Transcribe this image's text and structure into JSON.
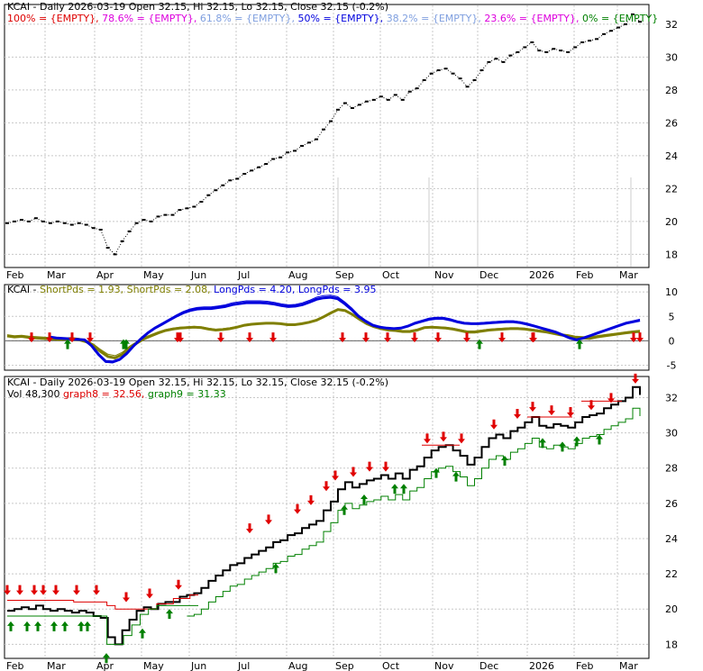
{
  "colors": {
    "price": "#000000",
    "red_arrow": "#e00000",
    "green_arrow": "#008000",
    "short_line": "#7f7f00",
    "long_line": "#0000dd",
    "fib100": "#dd0000",
    "fib786": "#dd00dd",
    "fib618": "#7f9fdf",
    "fib50": "#0000dd",
    "fib382": "#7f9fdf",
    "fib236": "#dd00dd",
    "fib0": "#008000",
    "graph8": "#dd0000",
    "graph9": "#008000",
    "grid": "#c8c8c8"
  },
  "panel1": {
    "legend": [
      {
        "text": "KCAI - Daily 2026-03-19 Open 32.15, Hi 32.15, Lo 32.15, Close 32.15 (-0.2%)",
        "color": "#000000"
      },
      {
        "text": "100% = {EMPTY},",
        "color": "#dd0000"
      },
      {
        "text": "78.6% = {EMPTY},",
        "color": "#dd00dd"
      },
      {
        "text": "61.8% = {EMPTY},",
        "color": "#7f9fdf"
      },
      {
        "text": "50% = {EMPTY},",
        "color": "#0000dd"
      },
      {
        "text": "38.2% = {EMPTY},",
        "color": "#7f9fdf"
      },
      {
        "text": "23.6% = {EMPTY},",
        "color": "#dd00dd"
      },
      {
        "text": "0% = {EMPTY}",
        "color": "#008000"
      }
    ]
  },
  "panel2": {
    "legend": [
      {
        "text": "KCAI -",
        "color": "#000000"
      },
      {
        "text": "ShortPds = 1.93,",
        "color": "#7f7f00"
      },
      {
        "text": "ShortPds = 2.08,",
        "color": "#7f7f00"
      },
      {
        "text": "LongPds = 4.20,",
        "color": "#0000dd"
      },
      {
        "text": "LongPds = 3.95",
        "color": "#0000dd"
      }
    ]
  },
  "panel3": {
    "legend1": [
      {
        "text": "KCAI - Daily 2026-03-19 Open 32.15, Hi 32.15, Lo 32.15, Close 32.15 (-0.2%)",
        "color": "#000000"
      }
    ],
    "legend2": [
      {
        "text": "Vol 48,300",
        "color": "#000000"
      },
      {
        "text": "graph8 = 32.56,",
        "color": "#dd0000"
      },
      {
        "text": "graph9 = 31.33",
        "color": "#008000"
      }
    ]
  },
  "chart_data": [
    {
      "type": "line",
      "name": "price",
      "x_ticks": [
        "Feb",
        "Mar",
        "Apr",
        "May",
        "Jun",
        "Jul",
        "Aug",
        "Sep",
        "Oct",
        "Nov",
        "Dec",
        "2026",
        "Feb",
        "Mar"
      ],
      "y_ticks": [
        18,
        20,
        22,
        24,
        26,
        28,
        30,
        32
      ],
      "ylim": [
        17.2,
        33.2
      ],
      "x": [
        0,
        10,
        20,
        28,
        34,
        40,
        48,
        56,
        64,
        72,
        80,
        88,
        96,
        104,
        112,
        118,
        124,
        132,
        140,
        148,
        156,
        164,
        172,
        180,
        188,
        196,
        204,
        212,
        220,
        228,
        236,
        244,
        252,
        260,
        268,
        276,
        284,
        292,
        300,
        308,
        316,
        324,
        332,
        340,
        348,
        356,
        364,
        372,
        380,
        388,
        396,
        404,
        412,
        420,
        428,
        436,
        444,
        452,
        460,
        468,
        476,
        484,
        492,
        500,
        508,
        516,
        524,
        532,
        540,
        548,
        556,
        564,
        572,
        580,
        588,
        596,
        604,
        612,
        620,
        628,
        636,
        644,
        652,
        660,
        668,
        676,
        684,
        692,
        700
      ],
      "y": [
        19.9,
        20.0,
        20.1,
        20.0,
        20.2,
        20.0,
        19.9,
        20.0,
        19.9,
        19.8,
        19.9,
        19.8,
        19.6,
        19.5,
        18.4,
        18.0,
        18.8,
        19.4,
        19.9,
        20.1,
        20.0,
        20.3,
        20.4,
        20.4,
        20.7,
        20.8,
        20.9,
        21.2,
        21.6,
        21.9,
        22.2,
        22.5,
        22.6,
        22.9,
        23.1,
        23.3,
        23.5,
        23.8,
        23.9,
        24.2,
        24.3,
        24.6,
        24.8,
        25.0,
        25.6,
        26.1,
        26.8,
        27.2,
        26.9,
        27.1,
        27.3,
        27.4,
        27.6,
        27.4,
        27.7,
        27.4,
        27.9,
        28.1,
        28.6,
        29.0,
        29.2,
        29.3,
        29.0,
        28.7,
        28.2,
        28.6,
        29.2,
        29.7,
        29.9,
        29.7,
        30.1,
        30.3,
        30.6,
        30.9,
        30.4,
        30.3,
        30.5,
        30.4,
        30.3,
        30.6,
        30.9,
        31.0,
        31.1,
        31.4,
        31.6,
        31.8,
        32.0,
        32.6,
        32.15
      ]
    },
    {
      "type": "line",
      "name": "periods",
      "y_ticks": [
        -5,
        0,
        5,
        10
      ],
      "ylim": [
        -6,
        11.5
      ],
      "series": [
        {
          "name": "ShortPds",
          "values": [
            1.0,
            0.8,
            0.9,
            0.7,
            0.6,
            0.5,
            0.4,
            0.3,
            0.3,
            0.4,
            0.2,
            -0.2,
            -1.0,
            -2.2,
            -3.2,
            -3.5,
            -2.8,
            -1.5,
            -0.5,
            0.4,
            1.0,
            1.6,
            2.1,
            2.4,
            2.6,
            2.7,
            2.8,
            2.7,
            2.4,
            2.2,
            2.3,
            2.5,
            2.8,
            3.2,
            3.4,
            3.5,
            3.6,
            3.6,
            3.5,
            3.3,
            3.3,
            3.5,
            3.8,
            4.2,
            4.9,
            5.7,
            6.4,
            6.2,
            5.4,
            4.4,
            3.5,
            2.9,
            2.5,
            2.2,
            2.1,
            1.9,
            1.9,
            2.2,
            2.7,
            2.8,
            2.7,
            2.6,
            2.4,
            2.1,
            1.8,
            1.8,
            2.0,
            2.2,
            2.3,
            2.4,
            2.5,
            2.5,
            2.4,
            2.2,
            2.0,
            1.8,
            1.5,
            1.2,
            1.0,
            0.7,
            0.6,
            0.5,
            0.8,
            1.0,
            1.2,
            1.4,
            1.6,
            1.8,
            1.93
          ]
        },
        {
          "name": "LongPds",
          "values": [
            null,
            null,
            null,
            null,
            null,
            null,
            0.8,
            0.6,
            0.5,
            0.4,
            0.3,
            0.2,
            -1.0,
            -2.8,
            -4.2,
            -4.3,
            -3.8,
            -2.6,
            -1.0,
            0.4,
            1.6,
            2.6,
            3.4,
            4.2,
            5.0,
            5.7,
            6.2,
            6.5,
            6.6,
            6.6,
            6.8,
            7.0,
            7.4,
            7.6,
            7.8,
            7.8,
            7.8,
            7.7,
            7.5,
            7.2,
            7.0,
            7.1,
            7.4,
            7.9,
            8.5,
            8.8,
            8.9,
            8.6,
            7.6,
            6.4,
            5.0,
            4.0,
            3.2,
            2.8,
            2.6,
            2.5,
            2.6,
            3.0,
            3.6,
            4.0,
            4.4,
            4.6,
            4.6,
            4.3,
            3.9,
            3.6,
            3.5,
            3.5,
            3.6,
            3.7,
            3.8,
            3.9,
            3.9,
            3.7,
            3.4,
            3.0,
            2.6,
            2.2,
            1.8,
            1.2,
            0.6,
            0.2,
            0.6,
            1.1,
            1.6,
            2.1,
            2.6,
            3.1,
            3.6,
            3.9,
            4.2
          ]
        }
      ]
    },
    {
      "type": "line",
      "name": "price_with_stops",
      "y_ticks": [
        18,
        20,
        22,
        24,
        26,
        28,
        30,
        32
      ],
      "ylim": [
        17.2,
        33.2
      ],
      "series": [
        {
          "name": "graph8",
          "values": [
            20.5,
            20.5,
            20.5,
            20.5,
            20.5,
            20.5,
            20.5,
            20.5,
            20.4,
            20.4,
            20.4,
            20.4,
            20.2,
            20.0,
            20.0,
            20.0,
            20.0,
            20.0,
            20.3,
            20.3,
            20.6,
            20.6,
            20.8,
            20.8
          ]
        },
        {
          "name": "graph9",
          "values": [
            19.6,
            19.6,
            19.6,
            19.6,
            19.6,
            19.6,
            19.6,
            19.6,
            19.6,
            19.6,
            19.6,
            19.6,
            18.0,
            18.0,
            18.5,
            19.1,
            19.7,
            20.0,
            20.2,
            20.2,
            20.2,
            20.2,
            20.2,
            20.2
          ]
        }
      ]
    }
  ]
}
